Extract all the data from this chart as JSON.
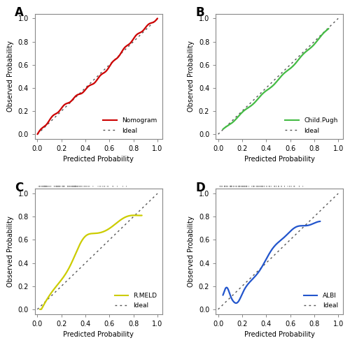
{
  "panel_labels": [
    "A",
    "B",
    "C",
    "D"
  ],
  "xlabel": "Predicted Probability",
  "ylabel": "Observed Probability",
  "xticks": [
    0.0,
    0.2,
    0.4,
    0.6,
    0.8,
    1.0
  ],
  "yticks": [
    0.0,
    0.2,
    0.4,
    0.6,
    0.8,
    1.0
  ],
  "model_colors": [
    "#cc0000",
    "#44bb44",
    "#cccc00",
    "#2255cc"
  ],
  "model_names": [
    "Nomogram",
    "Child.Pugh",
    "R.MELD",
    "ALBI"
  ],
  "ideal_color": "#555555",
  "bg_color": "#ffffff",
  "spine_color": "#888888",
  "font_size": 7,
  "panel_label_size": 12,
  "rug_color": "#888888",
  "rug_panels": [
    2,
    3
  ],
  "n_rug": 100
}
